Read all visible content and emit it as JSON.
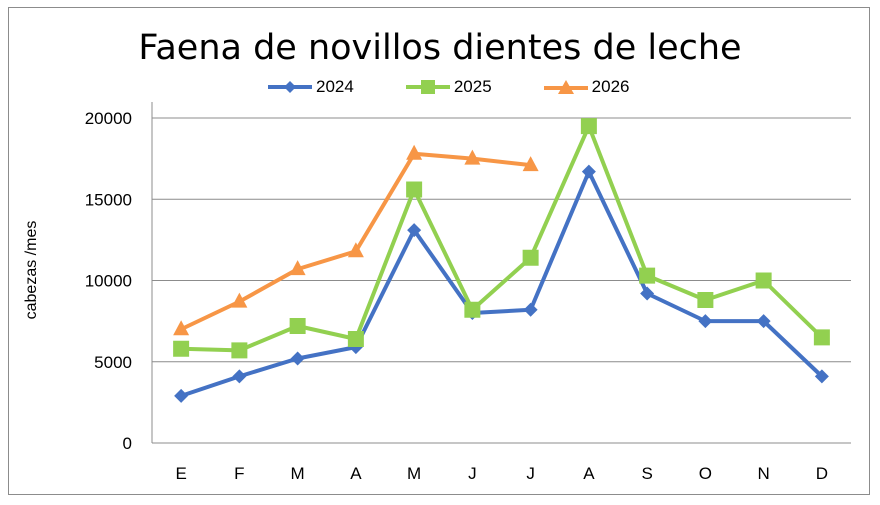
{
  "chart_data": {
    "type": "line",
    "title": "Faena de novillos dientes de leche",
    "xlabel": "",
    "ylabel": "cabezas /mes",
    "categories": [
      "E",
      "F",
      "M",
      "A",
      "M",
      "J",
      "J",
      "A",
      "S",
      "O",
      "N",
      "D"
    ],
    "ylim": [
      0,
      20000
    ],
    "yticks": [
      "0",
      "5000",
      "10000",
      "15000",
      "20000"
    ],
    "grid": "horizontal",
    "legend_position": "top",
    "series": [
      {
        "name": "2024",
        "color": "#4472c4",
        "marker": "diamond",
        "values": [
          2900,
          4100,
          5200,
          5900,
          13100,
          8000,
          8200,
          16700,
          9200,
          7500,
          7500,
          4100
        ]
      },
      {
        "name": "2025",
        "color": "#92d050",
        "marker": "square",
        "values": [
          5800,
          5700,
          7200,
          6400,
          15600,
          8200,
          11400,
          19500,
          10300,
          8800,
          10000,
          6500
        ]
      },
      {
        "name": "2026",
        "color": "#f79646",
        "marker": "triangle",
        "values": [
          7000,
          8700,
          10700,
          11800,
          17800,
          17500,
          17100,
          null,
          null,
          null,
          null,
          null
        ]
      }
    ]
  }
}
